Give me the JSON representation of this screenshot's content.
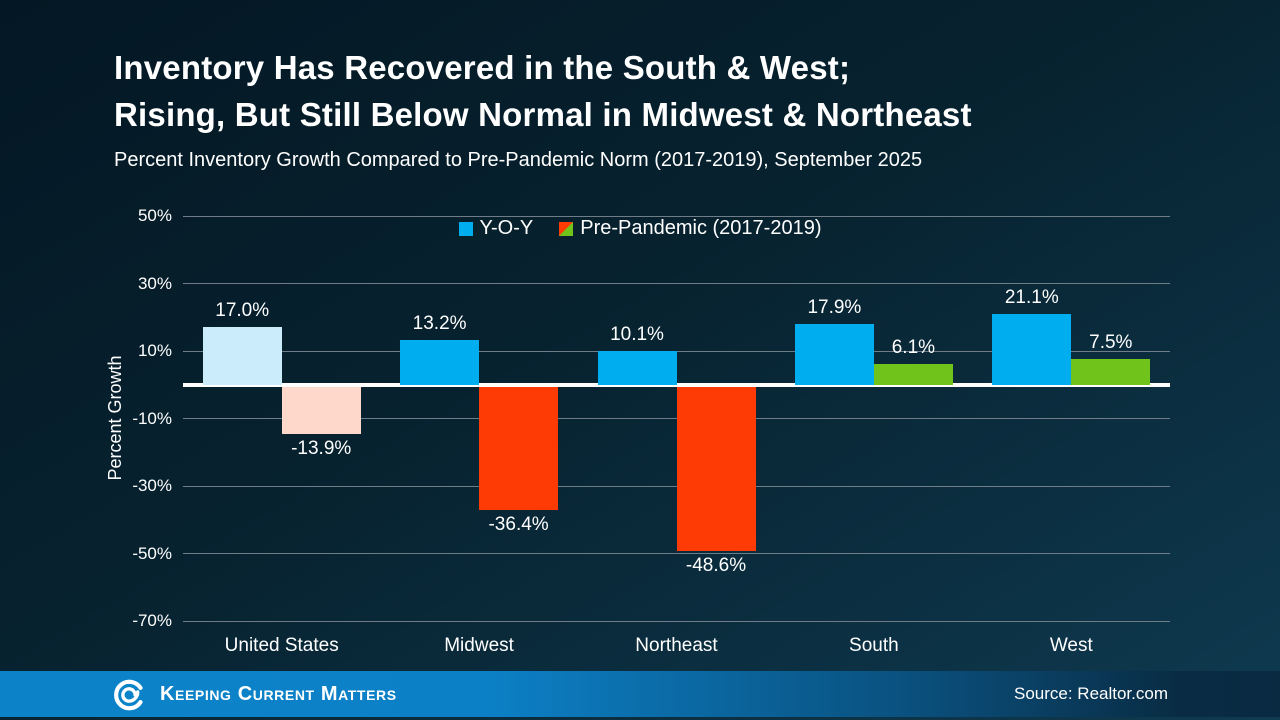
{
  "header": {
    "title_line1": "Inventory Has Recovered in the South & West;",
    "title_line2": "Rising, But Still Below Normal in Midwest & Northeast",
    "subtitle": "Percent Inventory Growth Compared to Pre-Pandemic Norm (2017-2019), September 2025"
  },
  "chart_data": {
    "type": "bar",
    "title": "Inventory Has Recovered in the South & West; Rising, But Still Below Normal in Midwest & Northeast",
    "subtitle": "Percent Inventory Growth Compared to Pre-Pandemic Norm (2017-2019), September 2025",
    "categories": [
      "United States",
      "Midwest",
      "Northeast",
      "South",
      "West"
    ],
    "series": [
      {
        "name": "Y-O-Y",
        "values": [
          17.0,
          13.2,
          10.1,
          17.9,
          21.1
        ],
        "labels": [
          "17.0%",
          "13.2%",
          "10.1%",
          "17.9%",
          "21.1%"
        ],
        "bar_colors": [
          "#cbedfb",
          "#00aeef",
          "#00aeef",
          "#00aeef",
          "#00aeef"
        ]
      },
      {
        "name": "Pre-Pandemic (2017-2019)",
        "values": [
          -13.9,
          -36.4,
          -48.6,
          6.1,
          7.5
        ],
        "labels": [
          "-13.9%",
          "-36.4%",
          "-48.6%",
          "6.1%",
          "7.5%"
        ],
        "bar_colors": [
          "#ffd8cc",
          "#ff3b05",
          "#ff3b05",
          "#6fc31b",
          "#6fc31b"
        ]
      }
    ],
    "ylabel": "Percent Growth",
    "ylim": [
      -70,
      50
    ],
    "yticks": [
      50,
      30,
      10,
      -10,
      -30,
      -50,
      -70
    ],
    "ytick_labels": [
      "50%",
      "30%",
      "10%",
      "-10%",
      "-30%",
      "-50%",
      "-70%"
    ],
    "grid": true,
    "legend_position": "top-center",
    "legend": [
      {
        "label": "Y-O-Y",
        "swatch": "solid",
        "colors": [
          "#00aeef"
        ]
      },
      {
        "label": "Pre-Pandemic (2017-2019)",
        "swatch": "diagonal-split",
        "colors": [
          "#ff3b05",
          "#6fc31b"
        ]
      }
    ],
    "colors": {
      "zero_line": "#ffffff",
      "gridline": "#6e7d88"
    }
  },
  "footer": {
    "brand": "Keeping Current Matters",
    "source": "Source: Realtor.com",
    "band_color": "#0c83c9"
  }
}
